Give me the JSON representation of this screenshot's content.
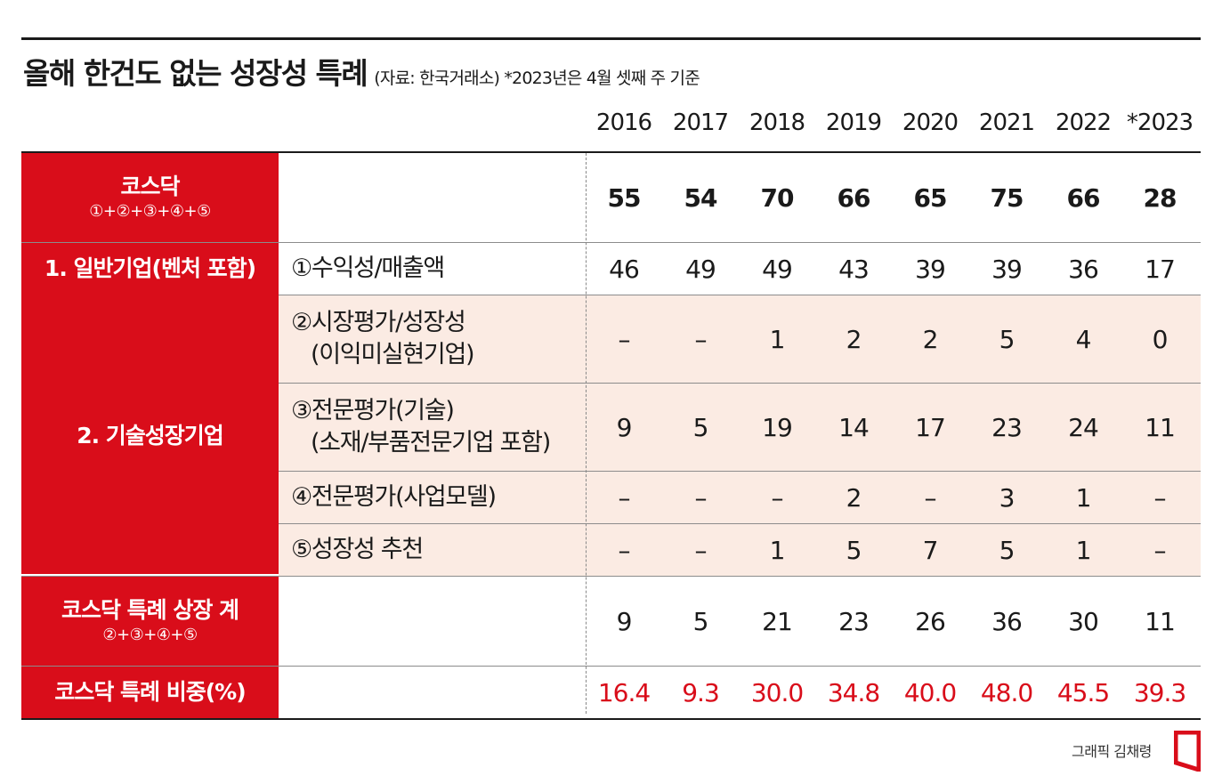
{
  "title": "올해 한건도 없는 성장성 특례",
  "subtitle": "(자료: 한국거래소)  *2023년은 4월 셋째 주 기준",
  "credit": "그래픽 김채령",
  "colors": {
    "accent": "#d90d1a",
    "shade": "#fbebe3",
    "text": "#1a1a1a"
  },
  "chart_data": {
    "type": "table",
    "columns": [
      "2016",
      "2017",
      "2018",
      "2019",
      "2020",
      "2021",
      "2022",
      "*2023"
    ],
    "rows": [
      {
        "category": "코스닥",
        "category_formula": "①+②+③+④+⑤",
        "label": "",
        "values": [
          "55",
          "54",
          "70",
          "66",
          "65",
          "75",
          "66",
          "28"
        ]
      },
      {
        "category": "1. 일반기업(벤처 포함)",
        "label": "①수익성/매출액",
        "values": [
          "46",
          "49",
          "49",
          "43",
          "39",
          "39",
          "36",
          "17"
        ]
      },
      {
        "category": "2. 기술성장기업",
        "label": "②시장평가/성장성",
        "label_line2": "(이익미실현기업)",
        "values": [
          "–",
          "–",
          "1",
          "2",
          "2",
          "5",
          "4",
          "0"
        ]
      },
      {
        "category": "2. 기술성장기업",
        "label": "③전문평가(기술)",
        "label_line2": "(소재/부품전문기업 포함)",
        "values": [
          "9",
          "5",
          "19",
          "14",
          "17",
          "23",
          "24",
          "11"
        ]
      },
      {
        "category": "2. 기술성장기업",
        "label": "④전문평가(사업모델)",
        "values": [
          "–",
          "–",
          "–",
          "2",
          "–",
          "3",
          "1",
          "–"
        ]
      },
      {
        "category": "2. 기술성장기업",
        "label": "⑤성장성 추천",
        "values": [
          "–",
          "–",
          "1",
          "5",
          "7",
          "5",
          "1",
          "–"
        ]
      },
      {
        "category": "코스닥 특례 상장 계",
        "category_formula": "②+③+④+⑤",
        "label": "",
        "values": [
          "9",
          "5",
          "21",
          "23",
          "26",
          "36",
          "30",
          "11"
        ]
      },
      {
        "category": "코스닥 특례 비중(%)",
        "label": "",
        "values": [
          "16.4",
          "9.3",
          "30.0",
          "34.8",
          "40.0",
          "48.0",
          "45.5",
          "39.3"
        ]
      }
    ]
  }
}
